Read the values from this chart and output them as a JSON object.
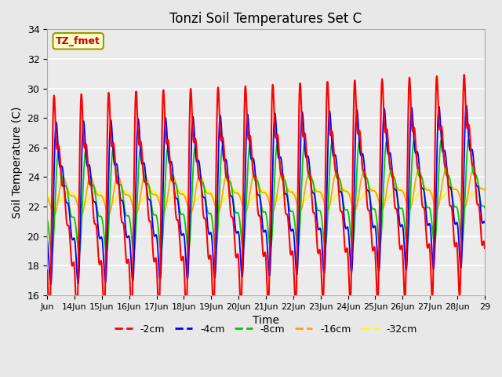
{
  "title": "Tonzi Soil Temperatures Set C",
  "xlabel": "Time",
  "ylabel": "Soil Temperature (C)",
  "ylim": [
    16,
    34
  ],
  "xlim_days": [
    13,
    29
  ],
  "yticks": [
    16,
    18,
    20,
    22,
    24,
    26,
    28,
    30,
    32,
    34
  ],
  "xtick_labels": [
    "Jun",
    "14Jun",
    "15Jun",
    "16Jun",
    "17Jun",
    "18Jun",
    "19Jun",
    "20Jun",
    "21Jun",
    "22Jun",
    "23Jun",
    "24Jun",
    "25Jun",
    "26Jun",
    "27Jun",
    "28Jun",
    "29"
  ],
  "xtick_days": [
    13,
    14,
    15,
    16,
    17,
    18,
    19,
    20,
    21,
    22,
    23,
    24,
    25,
    26,
    27,
    28,
    29
  ],
  "colors": {
    "-2cm": "#FF0000",
    "-4cm": "#0000FF",
    "-8cm": "#00CC00",
    "-16cm": "#FFA500",
    "-32cm": "#FFFF00"
  },
  "annotation_text": "TZ_fmet",
  "annotation_color": "#CC0000",
  "annotation_bg": "#FFFFCC",
  "annotation_edge": "#999900",
  "fig_bg": "#E8E8E8",
  "plot_bg": "#EBEBEB",
  "grid_color": "#FFFFFF",
  "depths": [
    "-2cm",
    "-4cm",
    "-8cm",
    "-16cm",
    "-32cm"
  ],
  "base_temp": 22.5,
  "start_day": 13,
  "end_day": 29,
  "points_per_day": 96
}
